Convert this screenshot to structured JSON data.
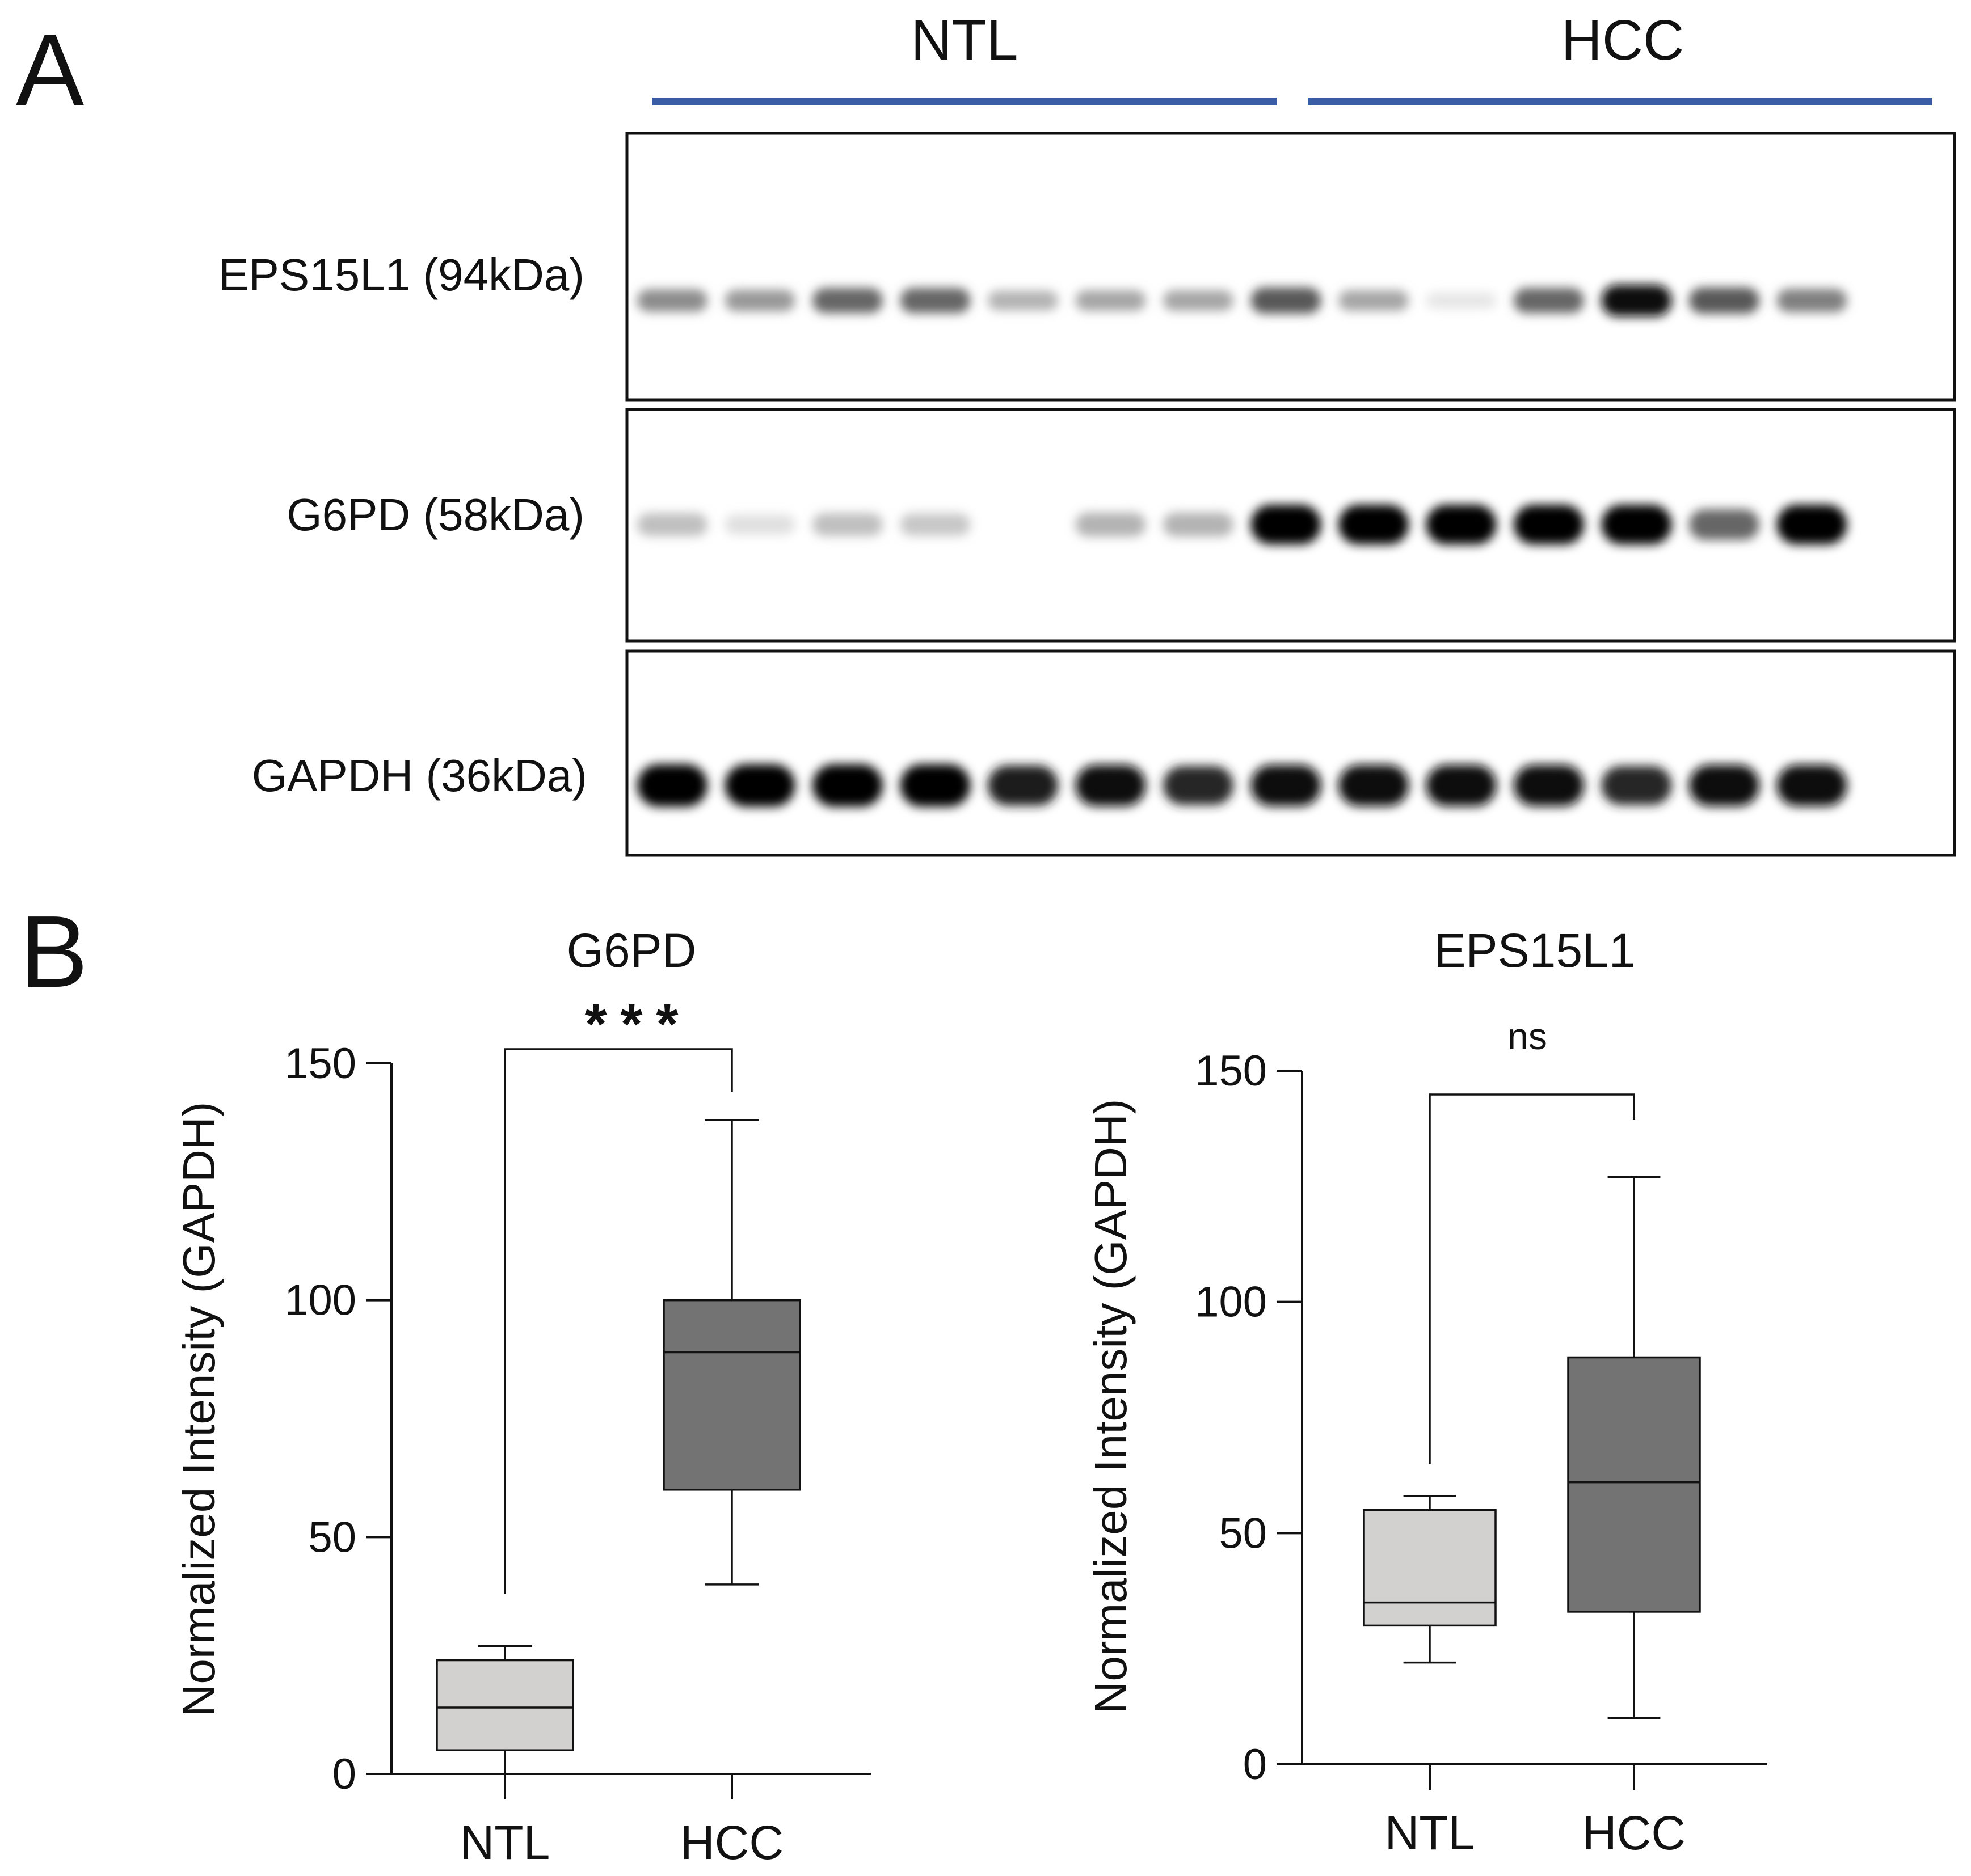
{
  "panel_a": {
    "label": "A",
    "groups": [
      {
        "name": "NTL",
        "color": "#3A5BA6"
      },
      {
        "name": "HCC",
        "color": "#3A5BA6"
      }
    ],
    "lanes_per_group": 7,
    "blots": [
      {
        "label": "EPS15L1 (94kDa)",
        "lane_intensity": [
          0.45,
          0.4,
          0.6,
          0.6,
          0.3,
          0.35,
          0.35,
          0.65,
          0.35,
          0.1,
          0.6,
          0.95,
          0.65,
          0.5
        ]
      },
      {
        "label": "G6PD (58kDa)",
        "lane_intensity": [
          0.25,
          0.12,
          0.25,
          0.22,
          0.0,
          0.3,
          0.3,
          1.0,
          1.0,
          1.0,
          1.0,
          1.0,
          0.6,
          1.0
        ]
      },
      {
        "label": "GAPDH (36kDa)",
        "lane_intensity": [
          1.0,
          1.0,
          1.0,
          1.0,
          0.9,
          0.95,
          0.85,
          0.95,
          0.95,
          0.95,
          0.95,
          0.85,
          0.95,
          0.95
        ]
      }
    ]
  },
  "panel_b": {
    "label": "B",
    "chart_data": [
      {
        "type": "box",
        "title": "G6PD",
        "significance": "***",
        "ylabel": "Normalized Intensity (GAPDH)",
        "ylim": [
          0,
          150
        ],
        "yticks": [
          0,
          50,
          100,
          150
        ],
        "categories": [
          "NTL",
          "HCC"
        ],
        "boxes": [
          {
            "category": "NTL",
            "min": 0,
            "q1": 5,
            "median": 14,
            "q3": 24,
            "max": 27,
            "fill": "#D3D0D0"
          },
          {
            "category": "HCC",
            "min": 40,
            "q1": 60,
            "median": 89,
            "q3": 100,
            "max": 138,
            "fill": "#747373"
          }
        ]
      },
      {
        "type": "box",
        "title": "EPS15L1",
        "significance": "ns",
        "ylabel": "Normalized Intensity (GAPDH)",
        "ylim": [
          0,
          150
        ],
        "yticks": [
          0,
          50,
          100,
          150
        ],
        "categories": [
          "NTL",
          "HCC"
        ],
        "boxes": [
          {
            "category": "NTL",
            "min": 22,
            "q1": 30,
            "median": 35,
            "q3": 55,
            "max": 58,
            "fill": "#D3D0D0"
          },
          {
            "category": "HCC",
            "min": 10,
            "q1": 33,
            "median": 61,
            "q3": 88,
            "max": 127,
            "fill": "#747373"
          }
        ]
      }
    ]
  }
}
